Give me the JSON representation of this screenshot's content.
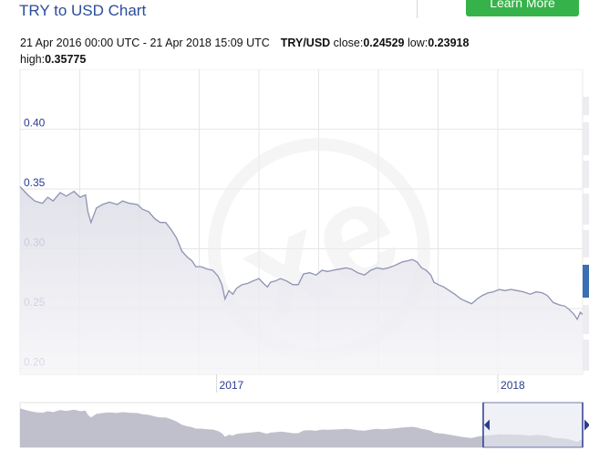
{
  "header": {
    "title": "TRY to USD Chart",
    "learn_more_label": "Learn More"
  },
  "info": {
    "range": "21 Apr 2016 00:00 UTC - 21 Apr 2018 15:09 UTC",
    "pair": "TRY/USD",
    "close_label": "close:",
    "close_value": "0.24529",
    "low_label": "low:",
    "low_value": "0.23918",
    "high_label": "high:",
    "high_value": "0.35775"
  },
  "colors": {
    "line": "#8e93b3",
    "area_top": "#dcdce6",
    "area_bottom": "#f6f6f9",
    "grid": "#e6e6e6",
    "tick_text": "#2a3b8f",
    "navigator_fill": "#b9b9c6",
    "navigator_mask": "#e7e8f2",
    "handle": "#2a3b8f",
    "accent_tab": "#3b6fb4"
  },
  "chart_data": {
    "type": "area",
    "title": "TRY to USD Chart",
    "x_start": "2016-04-21",
    "x_end": "2018-04-21",
    "x_ticks": [
      {
        "label": "2017",
        "date": "2017-01-01"
      },
      {
        "label": "2018",
        "date": "2018-01-01"
      }
    ],
    "y_ticks": [
      0.2,
      0.25,
      0.3,
      0.35,
      0.4
    ],
    "ylim": [
      0.195,
      0.45
    ],
    "grid": true,
    "series": [
      {
        "name": "TRY/USD",
        "points": [
          [
            "2016-04-21",
            0.352
          ],
          [
            "2016-05-01",
            0.345
          ],
          [
            "2016-05-10",
            0.34
          ],
          [
            "2016-05-20",
            0.338
          ],
          [
            "2016-05-27",
            0.343
          ],
          [
            "2016-06-03",
            0.34
          ],
          [
            "2016-06-12",
            0.347
          ],
          [
            "2016-06-20",
            0.344
          ],
          [
            "2016-06-30",
            0.348
          ],
          [
            "2016-07-08",
            0.343
          ],
          [
            "2016-07-15",
            0.345
          ],
          [
            "2016-07-18",
            0.331
          ],
          [
            "2016-07-22",
            0.322
          ],
          [
            "2016-07-29",
            0.334
          ],
          [
            "2016-08-06",
            0.337
          ],
          [
            "2016-08-15",
            0.339
          ],
          [
            "2016-08-25",
            0.337
          ],
          [
            "2016-09-01",
            0.34
          ],
          [
            "2016-09-10",
            0.338
          ],
          [
            "2016-09-20",
            0.337
          ],
          [
            "2016-09-27",
            0.333
          ],
          [
            "2016-10-05",
            0.331
          ],
          [
            "2016-10-13",
            0.325
          ],
          [
            "2016-10-20",
            0.322
          ],
          [
            "2016-10-27",
            0.322
          ],
          [
            "2016-11-03",
            0.316
          ],
          [
            "2016-11-10",
            0.309
          ],
          [
            "2016-11-17",
            0.298
          ],
          [
            "2016-11-24",
            0.293
          ],
          [
            "2016-11-30",
            0.29
          ],
          [
            "2016-12-05",
            0.285
          ],
          [
            "2016-12-12",
            0.285
          ],
          [
            "2016-12-20",
            0.283
          ],
          [
            "2016-12-27",
            0.282
          ],
          [
            "2017-01-03",
            0.277
          ],
          [
            "2017-01-08",
            0.27
          ],
          [
            "2017-01-12",
            0.258
          ],
          [
            "2017-01-17",
            0.265
          ],
          [
            "2017-01-22",
            0.262
          ],
          [
            "2017-01-27",
            0.267
          ],
          [
            "2017-02-03",
            0.27
          ],
          [
            "2017-02-10",
            0.271
          ],
          [
            "2017-02-17",
            0.273
          ],
          [
            "2017-02-25",
            0.275
          ],
          [
            "2017-03-03",
            0.271
          ],
          [
            "2017-03-08",
            0.268
          ],
          [
            "2017-03-12",
            0.272
          ],
          [
            "2017-03-18",
            0.273
          ],
          [
            "2017-03-25",
            0.275
          ],
          [
            "2017-04-02",
            0.273
          ],
          [
            "2017-04-10",
            0.27
          ],
          [
            "2017-04-17",
            0.27
          ],
          [
            "2017-04-24",
            0.279
          ],
          [
            "2017-05-02",
            0.28
          ],
          [
            "2017-05-10",
            0.278
          ],
          [
            "2017-05-18",
            0.282
          ],
          [
            "2017-05-25",
            0.281
          ],
          [
            "2017-06-01",
            0.282
          ],
          [
            "2017-06-10",
            0.283
          ],
          [
            "2017-06-18",
            0.284
          ],
          [
            "2017-06-25",
            0.283
          ],
          [
            "2017-07-03",
            0.28
          ],
          [
            "2017-07-12",
            0.278
          ],
          [
            "2017-07-20",
            0.282
          ],
          [
            "2017-07-28",
            0.284
          ],
          [
            "2017-08-05",
            0.283
          ],
          [
            "2017-08-12",
            0.284
          ],
          [
            "2017-08-20",
            0.286
          ],
          [
            "2017-08-30",
            0.289
          ],
          [
            "2017-09-06",
            0.29
          ],
          [
            "2017-09-12",
            0.291
          ],
          [
            "2017-09-18",
            0.289
          ],
          [
            "2017-09-24",
            0.284
          ],
          [
            "2017-09-30",
            0.282
          ],
          [
            "2017-10-06",
            0.278
          ],
          [
            "2017-10-10",
            0.272
          ],
          [
            "2017-10-16",
            0.27
          ],
          [
            "2017-10-23",
            0.268
          ],
          [
            "2017-10-30",
            0.265
          ],
          [
            "2017-11-06",
            0.262
          ],
          [
            "2017-11-14",
            0.258
          ],
          [
            "2017-11-21",
            0.256
          ],
          [
            "2017-11-28",
            0.254
          ],
          [
            "2017-12-05",
            0.258
          ],
          [
            "2017-12-12",
            0.261
          ],
          [
            "2017-12-19",
            0.263
          ],
          [
            "2017-12-26",
            0.264
          ],
          [
            "2018-01-03",
            0.266
          ],
          [
            "2018-01-10",
            0.265
          ],
          [
            "2018-01-18",
            0.266
          ],
          [
            "2018-01-26",
            0.265
          ],
          [
            "2018-02-03",
            0.264
          ],
          [
            "2018-02-12",
            0.262
          ],
          [
            "2018-02-20",
            0.264
          ],
          [
            "2018-02-28",
            0.263
          ],
          [
            "2018-03-06",
            0.261
          ],
          [
            "2018-03-14",
            0.255
          ],
          [
            "2018-03-22",
            0.253
          ],
          [
            "2018-03-29",
            0.252
          ],
          [
            "2018-04-04",
            0.249
          ],
          [
            "2018-04-10",
            0.245
          ],
          [
            "2018-04-14",
            0.241
          ],
          [
            "2018-04-18",
            0.247
          ],
          [
            "2018-04-21",
            0.245
          ]
        ]
      }
    ],
    "navigator": {
      "selected_start": "2017-12-13",
      "selected_end": "2018-04-21"
    }
  }
}
